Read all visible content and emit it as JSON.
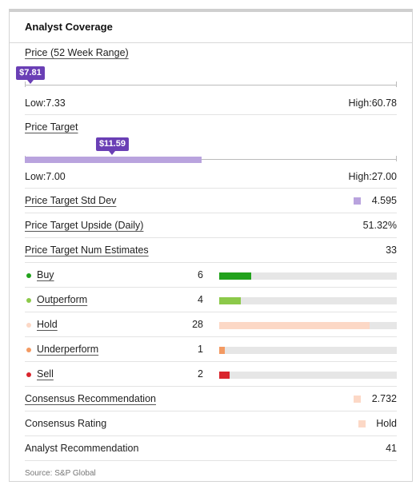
{
  "header": {
    "title": "Analyst Coverage"
  },
  "price": {
    "label": "Price (52 Week Range)",
    "current": "$7.81",
    "low": "Low:7.33",
    "high": "High:60.78",
    "current_fraction": 0.009
  },
  "target": {
    "label": "Price Target",
    "current": "$11.59",
    "low": "Low:7.00",
    "high": "High:27.00",
    "current_fraction": 0.23
  },
  "rows": {
    "std_dev": {
      "label": "Price Target Std Dev",
      "value": "4.595",
      "color": "#b9a3de"
    },
    "upside": {
      "label": "Price Target Upside (Daily)",
      "value": "51.32%"
    },
    "num_estimates": {
      "label": "Price Target Num Estimates",
      "value": "33"
    }
  },
  "ratings": [
    {
      "label": "Buy",
      "count": "6",
      "color": "#22a21c",
      "fraction": 0.1818
    },
    {
      "label": "Outperform",
      "count": "4",
      "color": "#8cc94a",
      "fraction": 0.1212
    },
    {
      "label": "Hold",
      "count": "28",
      "color": "#fcd8c6",
      "fraction": 0.8485
    },
    {
      "label": "Underperform",
      "count": "1",
      "color": "#f39a62",
      "fraction": 0.0303
    },
    {
      "label": "Sell",
      "count": "2",
      "color": "#d9252d",
      "fraction": 0.0606
    }
  ],
  "consensus": {
    "recommendation_label": "Consensus Recommendation",
    "recommendation_value": "2.732",
    "rating_label": "Consensus Rating",
    "rating_value": "Hold",
    "analyst_label": "Analyst Recommendation",
    "analyst_value": "41",
    "swatch_color": "#fcd8c6"
  },
  "source": "Source: S&P Global"
}
